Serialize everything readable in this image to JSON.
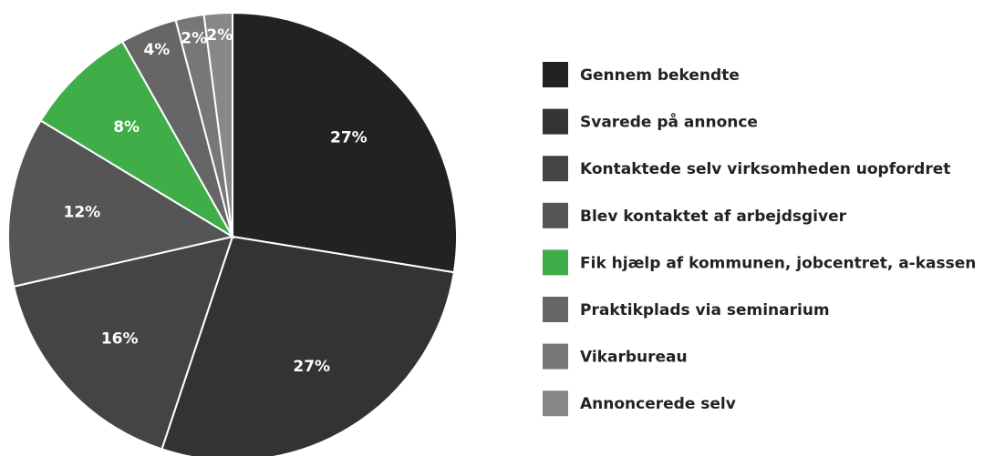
{
  "chart_data": {
    "type": "pie",
    "categories": [
      "Gennem bekendte",
      "Svarede på annonce",
      "Kontaktede selv virksomheden uopfordret",
      "Blev kontaktet af arbejdsgiver",
      "Fik hjælp af kommunen, jobcentret, a-kassen",
      "Praktikplads via seminarium",
      "Vikarbureau",
      "Annoncerede selv"
    ],
    "values": [
      27,
      27,
      16,
      12,
      8,
      4,
      2,
      2
    ],
    "value_labels": [
      "27%",
      "27%",
      "16%",
      "12%",
      "8%",
      "4%",
      "2%",
      "2%"
    ],
    "colors": [
      "#222222",
      "#333333",
      "#444444",
      "#555555",
      "#3fae49",
      "#666666",
      "#777777",
      "#888888"
    ],
    "legend": "right"
  }
}
